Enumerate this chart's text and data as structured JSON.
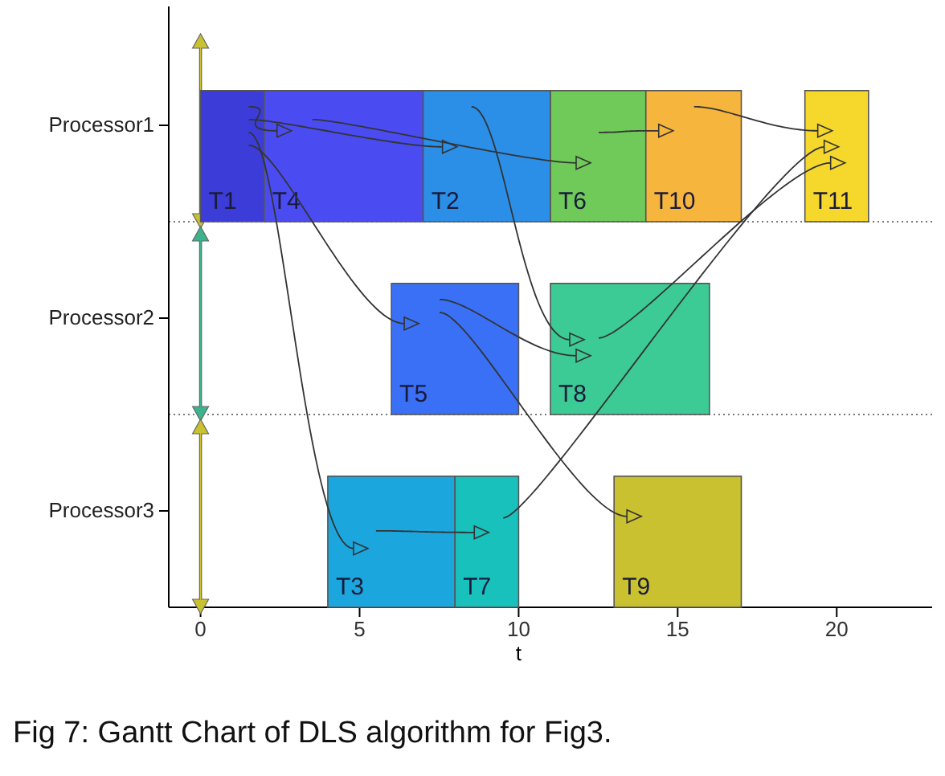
{
  "chart_data": {
    "type": "bar",
    "orientation": "horizontal",
    "xlabel": "t",
    "categories": [
      "Processor1",
      "Processor2",
      "Processor3"
    ],
    "xlim": [
      -1,
      23
    ],
    "grid": "y",
    "xticks": [
      0,
      5,
      10,
      15,
      20
    ],
    "series": [
      {
        "name": "T1",
        "color": "#3c3cd8",
        "values": [
          2,
          null,
          null
        ],
        "base": [
          0,
          null,
          null
        ]
      },
      {
        "name": "T4",
        "color": "#4a4cf2",
        "values": [
          5,
          null,
          null
        ],
        "base": [
          2,
          null,
          null
        ]
      },
      {
        "name": "T2",
        "color": "#2b8fe8",
        "values": [
          4,
          null,
          null
        ],
        "base": [
          7,
          null,
          null
        ]
      },
      {
        "name": "T6",
        "color": "#6fca5a",
        "values": [
          3,
          null,
          null
        ],
        "base": [
          11,
          null,
          null
        ]
      },
      {
        "name": "T10",
        "color": "#f6b53c",
        "values": [
          3,
          null,
          null
        ],
        "base": [
          14,
          null,
          null
        ]
      },
      {
        "name": "T11",
        "color": "#f6d82c",
        "values": [
          2,
          null,
          null
        ],
        "base": [
          19,
          null,
          null
        ]
      },
      {
        "name": "T5",
        "color": "#3a70f6",
        "values": [
          null,
          4,
          null
        ],
        "base": [
          null,
          6,
          null
        ]
      },
      {
        "name": "T8",
        "color": "#3ccb94",
        "values": [
          null,
          5,
          null
        ],
        "base": [
          null,
          11,
          null
        ]
      },
      {
        "name": "T3",
        "color": "#1ba7dd",
        "values": [
          null,
          null,
          4
        ],
        "base": [
          null,
          null,
          4
        ]
      },
      {
        "name": "T7",
        "color": "#19c1bd",
        "values": [
          null,
          null,
          2
        ],
        "base": [
          null,
          null,
          8
        ]
      },
      {
        "name": "T9",
        "color": "#c9c12f",
        "values": [
          null,
          null,
          4
        ],
        "base": [
          null,
          null,
          13
        ]
      }
    ],
    "annotations": [
      "Fig 7: Gantt Chart of DLS algorithm for Fig3."
    ]
  }
}
